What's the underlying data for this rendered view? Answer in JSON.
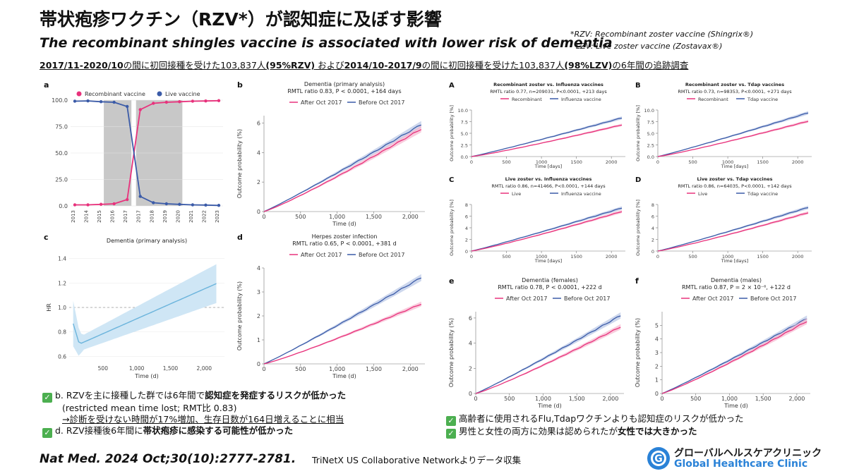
{
  "header": {
    "title": "帯状疱疹ワクチン（RZV*）が認知症に及ぼす影響",
    "subtitle": "The recombinant shingles vaccine is associated with lower risk of dementia",
    "footnote_1": "*RZV: Recombinant zoster vaccine (Shingrix®)",
    "footnote_2": "LZV: Live zoster vaccine (Zostavax®)",
    "cohort_1": "2017/11-2020/10",
    "cohort_2": "の間に初回接種を受けた103,837人",
    "cohort_3": "(95%RZV)",
    "cohort_4": " および",
    "cohort_5": "2014/10-2017/9",
    "cohort_6": "の間に初回接種を受けた103,837人",
    "cohort_7": "(98%LZV)",
    "cohort_8": "の6年間の追跡調査"
  },
  "notes": {
    "b_line1_a": "b. RZVを主に接種した群では6年間で",
    "b_line1_b": "認知症を発症するリスクが低かった",
    "b_line2": "(restricted mean time lost; RMT比 0.83)",
    "b_line3": "→診断を受けない時間が17%増加、生存日数が164日増えることに相当",
    "d_line_a": "d. RZV接種後6年間に",
    "d_line_b": "帯状疱疹に感染する可能性が低かった",
    "right_line1": "高齢者に使用されるFlu,Tdapワクチンよりも認知症のリスクが低かった",
    "right_line2_a": "男性と女性の両方に効果は認められたが",
    "right_line2_b": "女性では大きかった"
  },
  "footer": {
    "citation": "Nat Med. 2024 Oct;30(10):2777-2781.",
    "source": "TriNetX US Collaborative Networkよりデータ収集",
    "logo_ja": "グローバルヘルスケアクリニック",
    "logo_en": "Global Healthcare Clinic",
    "logo_mark": "G"
  },
  "colors": {
    "pink": "#e8327c",
    "pink_band": "#f6b6cf",
    "blue": "#3b5ba8",
    "blue_band": "#b8c6e6",
    "hr_line": "#6bb4dc",
    "hr_band": "#cfe6f5",
    "shade": "#c8c8c8"
  },
  "chart_data": [
    {
      "id": "a",
      "type": "line",
      "panel_label": "a",
      "legend": [
        "Recombinant vaccine",
        "Live vaccine"
      ],
      "categories": [
        "2013",
        "2014",
        "2015",
        "2016",
        "2017",
        "2017",
        "2018",
        "2019",
        "2020",
        "2021",
        "2022",
        "2023"
      ],
      "series": [
        {
          "name": "Recombinant vaccine",
          "values": [
            1,
            1,
            1.5,
            2,
            6,
            91,
            97,
            98,
            98.5,
            99,
            99.2,
            99.5
          ]
        },
        {
          "name": "Live vaccine",
          "values": [
            99,
            99.3,
            98.5,
            98,
            94,
            9,
            3,
            2,
            1.5,
            1,
            0.8,
            0.5
          ]
        }
      ],
      "yticks": [
        "0.0",
        "25.0",
        "50.0",
        "75.0",
        "100.0"
      ],
      "ylim": [
        0,
        100
      ]
    },
    {
      "id": "b",
      "type": "line",
      "panel_label": "b",
      "title": "Dementia (primary analysis)",
      "stat": "RMTL ratio 0.83, P < 0.0001, +164 days",
      "legend": [
        "After Oct 2017",
        "Before Oct 2017"
      ],
      "xlabel": "Time (d)",
      "ylabel": "Outcome probability (%)",
      "xticks": [
        "0",
        "500",
        "1,000",
        "1,500",
        "2,000"
      ],
      "yticks": [
        "0",
        "2",
        "4",
        "6"
      ],
      "xlim": [
        0,
        2200
      ],
      "ylim": [
        0,
        6.5
      ],
      "series": [
        {
          "name": "After Oct 2017",
          "end": 5.6
        },
        {
          "name": "Before Oct 2017",
          "end": 5.9
        }
      ]
    },
    {
      "id": "c",
      "type": "line",
      "panel_label": "c",
      "title": "Dementia (primary analysis)",
      "xlabel": "Time (d)",
      "ylabel": "HR",
      "xticks": [
        "500",
        "1,000",
        "1,500",
        "2,000"
      ],
      "yticks": [
        "0.6",
        "0.8",
        "1.0",
        "1.2",
        "1.4"
      ],
      "xlim": [
        0,
        2300
      ],
      "ylim": [
        0.55,
        1.45
      ]
    },
    {
      "id": "d",
      "type": "line",
      "panel_label": "d",
      "title": "Herpes zoster infection",
      "stat": "RMTL ratio 0.65, P < 0.0001, +381 d",
      "legend": [
        "After Oct 2017",
        "Before Oct 2017"
      ],
      "xlabel": "Time (d)",
      "ylabel": "Outcome probability (%)",
      "xticks": [
        "0",
        "500",
        "1,000",
        "1,500",
        "2,000"
      ],
      "yticks": [
        "0",
        "1",
        "2",
        "3",
        "4"
      ],
      "xlim": [
        0,
        2200
      ],
      "ylim": [
        0,
        4
      ],
      "series": [
        {
          "name": "After Oct 2017",
          "end": 2.5
        },
        {
          "name": "Before Oct 2017",
          "end": 3.6
        }
      ]
    },
    {
      "id": "A",
      "type": "line",
      "panel_label": "A",
      "title": "Recombinant zoster vs. Influenza vaccines",
      "stat": "RMTL ratio 0.77, n=209031, P<0.0001, +213 days",
      "legend": [
        "Recombinant",
        "Influenza vaccine"
      ],
      "xlabel": "Time [days]",
      "ylabel": "Outcome probability [%]",
      "xticks": [
        "0",
        "500",
        "1000",
        "1500",
        "2000"
      ],
      "yticks": [
        "0.0",
        "2.5",
        "5.0",
        "7.5",
        "10.0"
      ],
      "xlim": [
        0,
        2200
      ],
      "ylim": [
        0,
        10
      ],
      "series": [
        {
          "name": "Recombinant",
          "end": 6.8
        },
        {
          "name": "Influenza vaccine",
          "end": 8.3
        }
      ]
    },
    {
      "id": "B",
      "type": "line",
      "panel_label": "B",
      "title": "Recombinant zoster vs. Tdap vaccines",
      "stat": "RMTL ratio 0.73, n=98353, P<0.0001, +271 days",
      "legend": [
        "Recombinant",
        "Tdap vaccine"
      ],
      "xlabel": "Time [days]",
      "ylabel": "Outcome probability [%]",
      "xticks": [
        "0",
        "500",
        "1000",
        "1500",
        "2000"
      ],
      "yticks": [
        "0.0",
        "2.5",
        "5.0",
        "7.5",
        "10.0"
      ],
      "xlim": [
        0,
        2200
      ],
      "ylim": [
        0,
        10
      ],
      "series": [
        {
          "name": "Recombinant",
          "end": 7.6
        },
        {
          "name": "Tdap vaccine",
          "end": 9.4
        }
      ]
    },
    {
      "id": "C",
      "type": "line",
      "panel_label": "C",
      "title": "Live zoster vs. Influenza vaccines",
      "stat": "RMTL ratio 0.86, n=41466, P<0.0001, +144 days",
      "legend": [
        "Live",
        "Influenza vaccine"
      ],
      "xlabel": "Time [days]",
      "ylabel": "Outcome probability [%]",
      "xticks": [
        "0",
        "500",
        "1000",
        "1500",
        "2000"
      ],
      "yticks": [
        "0",
        "2",
        "4",
        "6",
        "8"
      ],
      "xlim": [
        0,
        2200
      ],
      "ylim": [
        0,
        8
      ],
      "series": [
        {
          "name": "Live",
          "end": 6.8
        },
        {
          "name": "Influenza vaccine",
          "end": 7.4
        }
      ]
    },
    {
      "id": "D",
      "type": "line",
      "panel_label": "D",
      "title": "Live zoster vs. Tdap vaccines",
      "stat": "RMTL ratio 0.86, n=64035, P<0.0001, +142 days",
      "legend": [
        "Live",
        "Tdap vaccine"
      ],
      "xlabel": "Time [days]",
      "ylabel": "Outcome probability [%]",
      "xticks": [
        "0",
        "500",
        "1000",
        "1500",
        "2000"
      ],
      "yticks": [
        "0",
        "2",
        "4",
        "6",
        "8"
      ],
      "xlim": [
        0,
        2200
      ],
      "ylim": [
        0,
        8
      ],
      "series": [
        {
          "name": "Live",
          "end": 6.6
        },
        {
          "name": "Tdap vaccine",
          "end": 7.5
        }
      ]
    },
    {
      "id": "e",
      "type": "line",
      "panel_label": "e",
      "title": "Dementia (females)",
      "stat": "RMTL ratio 0.78, P < 0.0001, +222 d",
      "legend": [
        "After Oct 2017",
        "Before Oct 2017"
      ],
      "xlabel": "Time (d)",
      "ylabel": "Outcome probability (%)",
      "xticks": [
        "0",
        "500",
        "1,000",
        "1,500",
        "2,000"
      ],
      "yticks": [
        "0",
        "2",
        "4",
        "6"
      ],
      "xlim": [
        0,
        2200
      ],
      "ylim": [
        0,
        6.5
      ],
      "series": [
        {
          "name": "After Oct 2017",
          "end": 5.3
        },
        {
          "name": "Before Oct 2017",
          "end": 6.2
        }
      ]
    },
    {
      "id": "f",
      "type": "line",
      "panel_label": "f",
      "title": "Dementia (males)",
      "stat": "RMTL ratio 0.87, P = 2 × 10⁻⁶, +122 d",
      "legend": [
        "After Oct 2017",
        "Before Oct 2017"
      ],
      "xlabel": "Time (d)",
      "ylabel": "Outcome probability (%)",
      "xticks": [
        "0",
        "500",
        "1,000",
        "1,500",
        "2,000"
      ],
      "yticks": [
        "0",
        "1",
        "2",
        "3",
        "4",
        "5"
      ],
      "xlim": [
        0,
        2200
      ],
      "ylim": [
        0,
        6
      ],
      "series": [
        {
          "name": "After Oct 2017",
          "end": 5.3
        },
        {
          "name": "Before Oct 2017",
          "end": 5.5
        }
      ]
    }
  ]
}
